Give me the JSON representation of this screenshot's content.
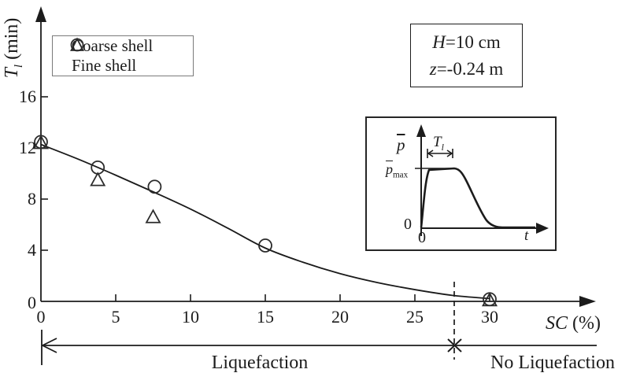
{
  "figure": {
    "axes": {
      "y_label": {
        "var": "T",
        "sub": "l",
        "rest": " (min)"
      },
      "x_label": {
        "var": "SC",
        "rest": " (%)"
      },
      "x_ticks": [
        "0",
        "5",
        "10",
        "15",
        "20",
        "25",
        "30"
      ],
      "y_ticks": [
        "16",
        "12",
        "8",
        "4",
        "0"
      ]
    },
    "legend": {
      "items": [
        {
          "marker": "circle",
          "label": "Coarse shell"
        },
        {
          "marker": "triangle",
          "label": "Fine shell"
        }
      ]
    },
    "conditions_box": {
      "line1_var": "H",
      "line1_rest": "=10 cm",
      "line2_var": "z",
      "line2_rest": "=-0.24 m"
    },
    "regions": {
      "left": "Liquefaction",
      "right": "No Liquefaction",
      "boundary_sc": 27.6
    },
    "inset": {
      "y_axis": "p",
      "peak_base": "p",
      "peak_sub": "max",
      "duration_var": "T",
      "duration_sub": "l",
      "origin_y": "0",
      "origin_x": "0",
      "x_axis": "t"
    }
  },
  "chart_data": {
    "type": "scatter",
    "title": "",
    "xlabel": "SC (%)",
    "ylabel": "Tl (min)",
    "xlim": [
      0,
      32
    ],
    "ylim": [
      0,
      18
    ],
    "x_ticks": [
      0,
      5,
      10,
      15,
      20,
      25,
      30
    ],
    "y_ticks": [
      0,
      4,
      8,
      12,
      16
    ],
    "grid": false,
    "legend_position": "upper-left",
    "series": [
      {
        "name": "Coarse shell",
        "marker": "circle",
        "points": [
          [
            0,
            12.5
          ],
          [
            3.8,
            10.5
          ],
          [
            7.6,
            9.0
          ],
          [
            15,
            4.4
          ],
          [
            30,
            0.2
          ]
        ]
      },
      {
        "name": "Fine shell",
        "marker": "triangle",
        "points": [
          [
            0,
            12.4
          ],
          [
            3.8,
            9.5
          ],
          [
            7.5,
            6.6
          ],
          [
            30,
            0.1
          ]
        ]
      },
      {
        "name": "trend fit",
        "marker": "none",
        "line": true,
        "points": [
          [
            0,
            12.3
          ],
          [
            2.5,
            11.15
          ],
          [
            5,
            9.9
          ],
          [
            7.5,
            8.6
          ],
          [
            10,
            7.25
          ],
          [
            12.5,
            5.75
          ],
          [
            15,
            4.2
          ],
          [
            17.5,
            3.1
          ],
          [
            20,
            2.2
          ],
          [
            22.5,
            1.5
          ],
          [
            25,
            0.95
          ],
          [
            27.5,
            0.5
          ],
          [
            30,
            0.25
          ]
        ]
      }
    ],
    "annotations": {
      "boundary_line_sc": 27.6,
      "region_left_label": "Liquefaction",
      "region_right_label": "No Liquefaction",
      "conditions": [
        "H=10 cm",
        "z=-0.24 m"
      ],
      "inset_description": "schematic of excess pore pressure p vs time t: rise to p_max, plateau of duration Tl, then dissipation"
    }
  }
}
